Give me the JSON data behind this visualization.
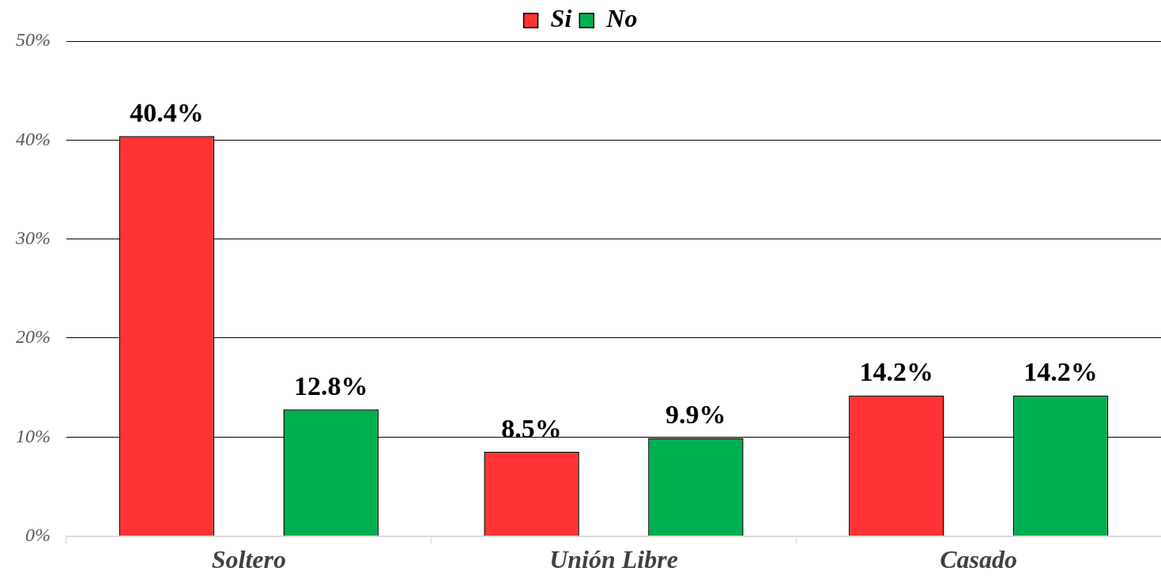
{
  "chart_data": {
    "type": "bar",
    "categories": [
      "Soltero",
      "Unión Libre",
      "Casado"
    ],
    "series": [
      {
        "name": "Si",
        "color": "#ff3333",
        "values": [
          40.4,
          8.5,
          14.2
        ]
      },
      {
        "name": "No",
        "color": "#00b050",
        "values": [
          12.8,
          9.9,
          14.2
        ]
      }
    ],
    "ylim": [
      0,
      50
    ],
    "yticks": [
      {
        "value": 0,
        "label": "0%"
      },
      {
        "value": 10,
        "label": "10%"
      },
      {
        "value": 20,
        "label": "20%"
      },
      {
        "value": 30,
        "label": "30%"
      },
      {
        "value": 40,
        "label": "40%"
      },
      {
        "value": 50,
        "label": "50%"
      }
    ],
    "value_labels": [
      [
        "40.4%",
        "8.5%",
        "14.2%"
      ],
      [
        "12.8%",
        "9.9%",
        "14.2%"
      ]
    ],
    "grid": "y",
    "legend": "top"
  }
}
